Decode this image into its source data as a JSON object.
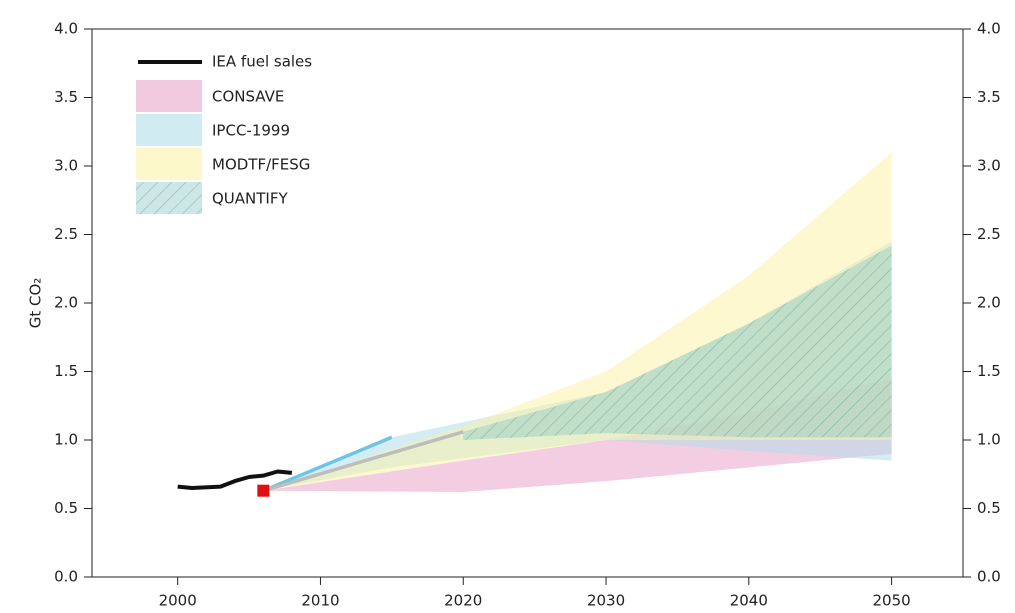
{
  "chart_data": {
    "type": "band",
    "ylabel": "Gt CO₂",
    "xlim": [
      1994,
      2055
    ],
    "xticks": [
      2000,
      2010,
      2020,
      2030,
      2040,
      2050
    ],
    "ylim": [
      0,
      4
    ],
    "yticks": [
      {
        "value": 0,
        "label": "0.0"
      },
      0.5,
      {
        "value": 1,
        "label": "1.0"
      },
      1.5,
      {
        "value": 2,
        "label": "2.0"
      },
      2.5,
      {
        "value": 3,
        "label": "3.0"
      },
      3.5,
      {
        "value": 4,
        "label": "4.0"
      }
    ],
    "y2lim": [
      0,
      4
    ],
    "y2ticks": [
      {
        "value": 0,
        "label": "0.0"
      },
      0.5,
      {
        "value": 1,
        "label": "1.0"
      },
      1.5,
      {
        "value": 2,
        "label": "2.0"
      },
      2.5,
      {
        "value": 3,
        "label": "3.0"
      },
      3.5,
      {
        "value": 4,
        "label": "4.0"
      }
    ],
    "bands": [
      {
        "name": "CONSAVE",
        "color": "#e9a6cc",
        "hatch": false,
        "x": [
          2006,
          2020,
          2030,
          2040,
          2050
        ],
        "upper": [
          0.63,
          0.85,
          1.0,
          1.2,
          1.45
        ],
        "lower": [
          0.63,
          0.62,
          0.7,
          0.8,
          0.9
        ]
      },
      {
        "name": "IPCC-1999",
        "color": "#b3dde9",
        "hatch": false,
        "x": [
          2006,
          2015,
          2030,
          2040,
          2050
        ],
        "upper": [
          0.63,
          1.02,
          1.35,
          1.85,
          2.45
        ],
        "lower": [
          0.63,
          0.8,
          1.0,
          0.92,
          0.85
        ]
      },
      {
        "name": "MODTF/FESG",
        "color": "#fbf3aa",
        "hatch": false,
        "x": [
          2006,
          2020,
          2030,
          2040,
          2050
        ],
        "upper": [
          0.63,
          1.1,
          1.5,
          2.2,
          3.1
        ],
        "lower": [
          0.63,
          0.85,
          1.0,
          1.0,
          1.0
        ]
      },
      {
        "name": "QUANTIFY",
        "color": "#8fcac6",
        "hatch": true,
        "x": [
          2020,
          2030,
          2040,
          2050
        ],
        "upper": [
          1.06,
          1.35,
          1.85,
          2.42
        ],
        "lower": [
          1.0,
          1.05,
          1.02,
          1.02
        ]
      }
    ],
    "series": [
      {
        "name": "IEA fuel sales",
        "color": "#111111",
        "x": [
          2000,
          2001,
          2003,
          2004,
          2005,
          2006,
          2007,
          2008
        ],
        "values": [
          0.66,
          0.65,
          0.66,
          0.7,
          0.73,
          0.74,
          0.77,
          0.76
        ]
      }
    ],
    "lines": [
      {
        "color": "#6cc5e8",
        "x": [
          2006,
          2015
        ],
        "values": [
          0.63,
          1.02
        ]
      },
      {
        "color": "#bdbdbd",
        "x": [
          2006,
          2020
        ],
        "values": [
          0.63,
          1.06
        ]
      }
    ],
    "marker": {
      "color": "#e01010",
      "x": 2006,
      "y": 0.63
    }
  }
}
